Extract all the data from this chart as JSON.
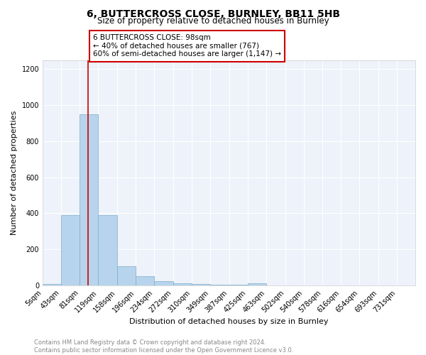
{
  "title": "6, BUTTERCROSS CLOSE, BURNLEY, BB11 5HB",
  "subtitle": "Size of property relative to detached houses in Burnley",
  "xlabel": "Distribution of detached houses by size in Burnley",
  "ylabel": "Number of detached properties",
  "bin_edges": [
    5,
    43,
    81,
    119,
    158,
    196,
    234,
    272,
    310,
    349,
    387,
    425,
    463,
    502,
    540,
    578,
    616,
    654,
    693,
    731,
    769
  ],
  "bar_heights": [
    10,
    390,
    950,
    390,
    105,
    50,
    25,
    12,
    8,
    5,
    3,
    12,
    0,
    0,
    0,
    0,
    0,
    0,
    0,
    0
  ],
  "bar_color": "#b8d4ec",
  "bar_edge_color": "#7aadcc",
  "red_line_x": 98,
  "ylim": [
    0,
    1250
  ],
  "yticks": [
    0,
    200,
    400,
    600,
    800,
    1000,
    1200
  ],
  "annotation_line1": "6 BUTTERCROSS CLOSE: 98sqm",
  "annotation_line2": "← 40% of detached houses are smaller (767)",
  "annotation_line3": "60% of semi-detached houses are larger (1,147) →",
  "annotation_box_color": "#cc0000",
  "footer_line1": "Contains HM Land Registry data © Crown copyright and database right 2024.",
  "footer_line2": "Contains public sector information licensed under the Open Government Licence v3.0.",
  "background_color": "#eef2fa",
  "grid_color": "#ffffff",
  "title_fontsize": 10,
  "subtitle_fontsize": 8.5,
  "xlabel_fontsize": 8,
  "ylabel_fontsize": 8,
  "tick_fontsize": 7,
  "annotation_fontsize": 7.5,
  "footer_fontsize": 6
}
